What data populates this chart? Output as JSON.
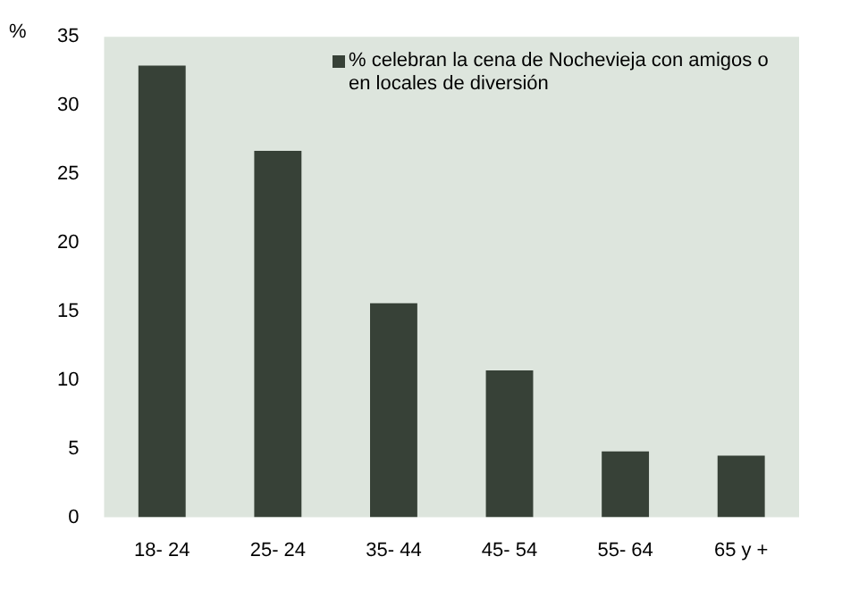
{
  "chart_data": {
    "type": "bar",
    "ylabel": "%",
    "categories": [
      "18- 24",
      "25- 24",
      "35- 44",
      "45- 54",
      "55- 64",
      "65 y +"
    ],
    "series": [
      {
        "name": "% celebran la cena de Nochevieja con amigos o en locales de diversión",
        "color": "#374137",
        "values": [
          32.9,
          26.7,
          15.6,
          10.7,
          4.8,
          4.5
        ]
      }
    ],
    "ylim": [
      0,
      35
    ],
    "yticks": [
      0,
      5,
      10,
      15,
      20,
      25,
      30,
      35
    ],
    "grid": false,
    "legend": "top right"
  }
}
